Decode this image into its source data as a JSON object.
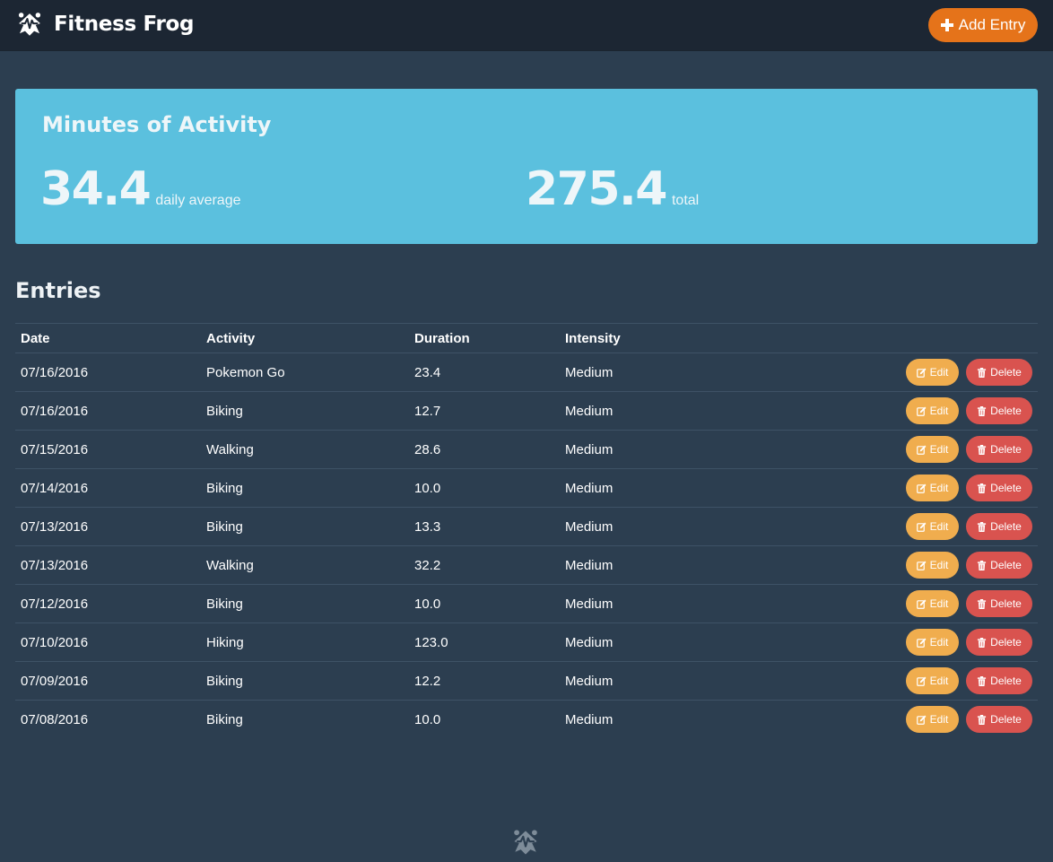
{
  "app": {
    "name": "Fitness Frog",
    "logo_icon": "frog-heartbeat-icon"
  },
  "header": {
    "add_entry_label": "Add Entry",
    "add_icon": "plus-icon"
  },
  "stats": {
    "title": "Minutes of Activity",
    "daily_average": {
      "value": "34.4",
      "label": "daily average"
    },
    "total": {
      "value": "275.4",
      "label": "total"
    }
  },
  "entries": {
    "title": "Entries",
    "columns": [
      "Date",
      "Activity",
      "Duration",
      "Intensity"
    ],
    "edit_label": "Edit",
    "delete_label": "Delete",
    "rows": [
      {
        "date": "07/16/2016",
        "activity": "Pokemon Go",
        "duration": "23.4",
        "intensity": "Medium"
      },
      {
        "date": "07/16/2016",
        "activity": "Biking",
        "duration": "12.7",
        "intensity": "Medium"
      },
      {
        "date": "07/15/2016",
        "activity": "Walking",
        "duration": "28.6",
        "intensity": "Medium"
      },
      {
        "date": "07/14/2016",
        "activity": "Biking",
        "duration": "10.0",
        "intensity": "Medium"
      },
      {
        "date": "07/13/2016",
        "activity": "Biking",
        "duration": "13.3",
        "intensity": "Medium"
      },
      {
        "date": "07/13/2016",
        "activity": "Walking",
        "duration": "32.2",
        "intensity": "Medium"
      },
      {
        "date": "07/12/2016",
        "activity": "Biking",
        "duration": "10.0",
        "intensity": "Medium"
      },
      {
        "date": "07/10/2016",
        "activity": "Hiking",
        "duration": "123.0",
        "intensity": "Medium"
      },
      {
        "date": "07/09/2016",
        "activity": "Biking",
        "duration": "12.2",
        "intensity": "Medium"
      },
      {
        "date": "07/08/2016",
        "activity": "Biking",
        "duration": "10.0",
        "intensity": "Medium"
      }
    ]
  },
  "colors": {
    "background": "#2c3e50",
    "navbar": "#1c2633",
    "stats_panel": "#5bc0de",
    "add_button": "#e5731a",
    "edit_button": "#f0ad4e",
    "delete_button": "#d9534f"
  }
}
